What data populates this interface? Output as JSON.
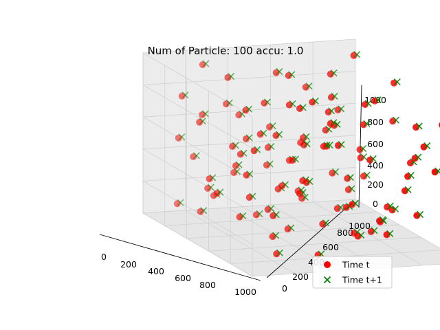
{
  "chart_data": {
    "type": "scatter",
    "title": "Num of Particle: 100 accu: 1.0",
    "xlim": [
      0,
      1000
    ],
    "ylim": [
      0,
      1000
    ],
    "zlim": [
      0,
      1000
    ],
    "x_ticks": [
      "0",
      "200",
      "400",
      "600",
      "800",
      "1000"
    ],
    "y_ticks": [
      "0",
      "200",
      "400",
      "600",
      "800",
      "1000"
    ],
    "z_ticks": [
      "0",
      "200",
      "400",
      "600",
      "800",
      "1000"
    ],
    "grid": true,
    "legend": "bottom-right",
    "series": [
      {
        "name": "Time t",
        "marker": "circle",
        "color": "#ff0000",
        "points": [
          [
            40,
            260,
            920
          ],
          [
            60,
            420,
            600
          ],
          [
            90,
            720,
            760
          ],
          [
            110,
            180,
            380
          ],
          [
            130,
            560,
            880
          ],
          [
            150,
            90,
            520
          ],
          [
            170,
            830,
            640
          ],
          [
            190,
            330,
            300
          ],
          [
            210,
            640,
            120
          ],
          [
            230,
            470,
            460
          ],
          [
            250,
            150,
            700
          ],
          [
            270,
            900,
            260
          ],
          [
            290,
            250,
            940
          ],
          [
            310,
            700,
            580
          ],
          [
            330,
            560,
            220
          ],
          [
            350,
            90,
            140
          ],
          [
            370,
            380,
            800
          ],
          [
            390,
            820,
            480
          ],
          [
            410,
            210,
            560
          ],
          [
            430,
            960,
            900
          ],
          [
            450,
            450,
            40
          ],
          [
            470,
            720,
            340
          ],
          [
            490,
            300,
            660
          ],
          [
            510,
            610,
            780
          ],
          [
            530,
            40,
            420
          ],
          [
            550,
            890,
            160
          ],
          [
            570,
            410,
            520
          ],
          [
            590,
            180,
            860
          ],
          [
            610,
            760,
            60
          ],
          [
            630,
            540,
            620
          ],
          [
            650,
            320,
            400
          ],
          [
            670,
            940,
            720
          ],
          [
            690,
            100,
            240
          ],
          [
            710,
            680,
            900
          ],
          [
            730,
            470,
            180
          ],
          [
            750,
            240,
            760
          ],
          [
            770,
            850,
            460
          ],
          [
            790,
            550,
            300
          ],
          [
            810,
            380,
            980
          ],
          [
            830,
            60,
            560
          ],
          [
            850,
            710,
            140
          ],
          [
            870,
            290,
            440
          ],
          [
            890,
            950,
            820
          ],
          [
            910,
            600,
            640
          ],
          [
            930,
            150,
            100
          ],
          [
            950,
            430,
            760
          ],
          [
            970,
            790,
            300
          ],
          [
            990,
            260,
            560
          ],
          [
            60,
            860,
            200
          ],
          [
            80,
            120,
            80
          ],
          [
            100,
            690,
            420
          ],
          [
            120,
            330,
            700
          ],
          [
            140,
            920,
            960
          ],
          [
            160,
            500,
            320
          ],
          [
            180,
            240,
            160
          ],
          [
            200,
            780,
            880
          ],
          [
            220,
            420,
            40
          ],
          [
            240,
            60,
            820
          ],
          [
            260,
            620,
            520
          ],
          [
            280,
            880,
            380
          ],
          [
            300,
            150,
            260
          ],
          [
            320,
            520,
            940
          ],
          [
            340,
            740,
            100
          ],
          [
            360,
            300,
            580
          ],
          [
            380,
            980,
            640
          ],
          [
            400,
            60,
            720
          ],
          [
            420,
            420,
            280
          ],
          [
            440,
            660,
            840
          ],
          [
            460,
            200,
            460
          ],
          [
            480,
            870,
            60
          ],
          [
            500,
            500,
            580
          ],
          [
            520,
            320,
            200
          ],
          [
            540,
            760,
            700
          ],
          [
            560,
            60,
            340
          ],
          [
            580,
            960,
            460
          ],
          [
            600,
            380,
            880
          ],
          [
            620,
            140,
            600
          ],
          [
            640,
            820,
            220
          ],
          [
            660,
            560,
            760
          ],
          [
            680,
            260,
            100
          ],
          [
            700,
            920,
            540
          ],
          [
            720,
            480,
            660
          ],
          [
            740,
            120,
            380
          ],
          [
            760,
            700,
            940
          ],
          [
            780,
            350,
            480
          ],
          [
            800,
            600,
            120
          ],
          [
            820,
            900,
            660
          ],
          [
            840,
            180,
            300
          ],
          [
            860,
            440,
            860
          ],
          [
            880,
            780,
            420
          ],
          [
            900,
            60,
            740
          ],
          [
            920,
            640,
            260
          ],
          [
            940,
            340,
            80
          ],
          [
            960,
            880,
            560
          ],
          [
            980,
            480,
            400
          ],
          [
            30,
            580,
            500
          ],
          [
            130,
            900,
            120
          ],
          [
            250,
            560,
            380
          ],
          [
            570,
            700,
            40
          ],
          [
            890,
            280,
            980
          ]
        ]
      },
      {
        "name": "Time t+1",
        "marker": "x",
        "color": "#008000",
        "points": [
          [
            50,
            270,
            930
          ],
          [
            70,
            430,
            610
          ],
          [
            100,
            730,
            770
          ],
          [
            120,
            190,
            390
          ],
          [
            140,
            570,
            890
          ],
          [
            160,
            100,
            530
          ],
          [
            180,
            840,
            650
          ],
          [
            200,
            340,
            310
          ],
          [
            220,
            650,
            130
          ],
          [
            240,
            480,
            470
          ],
          [
            260,
            160,
            710
          ],
          [
            280,
            910,
            270
          ],
          [
            300,
            260,
            950
          ],
          [
            320,
            710,
            590
          ],
          [
            340,
            570,
            230
          ],
          [
            360,
            100,
            150
          ],
          [
            380,
            390,
            810
          ],
          [
            400,
            830,
            490
          ],
          [
            420,
            220,
            570
          ],
          [
            440,
            970,
            910
          ],
          [
            460,
            460,
            50
          ],
          [
            480,
            730,
            350
          ],
          [
            500,
            310,
            670
          ],
          [
            520,
            620,
            790
          ],
          [
            540,
            50,
            430
          ],
          [
            560,
            900,
            170
          ],
          [
            580,
            420,
            530
          ],
          [
            600,
            190,
            870
          ],
          [
            620,
            770,
            70
          ],
          [
            640,
            550,
            630
          ],
          [
            660,
            330,
            410
          ],
          [
            680,
            950,
            730
          ],
          [
            700,
            110,
            250
          ],
          [
            720,
            690,
            910
          ],
          [
            740,
            480,
            190
          ],
          [
            760,
            250,
            770
          ],
          [
            780,
            860,
            470
          ],
          [
            800,
            560,
            310
          ],
          [
            820,
            390,
            990
          ],
          [
            840,
            70,
            570
          ],
          [
            860,
            720,
            150
          ],
          [
            880,
            300,
            450
          ],
          [
            900,
            960,
            830
          ],
          [
            920,
            610,
            650
          ],
          [
            940,
            160,
            110
          ],
          [
            960,
            440,
            770
          ],
          [
            980,
            800,
            310
          ],
          [
            1000,
            270,
            570
          ],
          [
            70,
            870,
            210
          ],
          [
            90,
            130,
            90
          ],
          [
            110,
            700,
            430
          ],
          [
            130,
            340,
            710
          ],
          [
            150,
            930,
            970
          ],
          [
            170,
            510,
            330
          ],
          [
            190,
            250,
            170
          ],
          [
            210,
            790,
            890
          ],
          [
            230,
            430,
            50
          ],
          [
            250,
            70,
            830
          ],
          [
            270,
            630,
            530
          ],
          [
            290,
            890,
            390
          ],
          [
            310,
            160,
            270
          ],
          [
            330,
            530,
            950
          ],
          [
            350,
            750,
            110
          ],
          [
            370,
            310,
            590
          ],
          [
            390,
            990,
            650
          ],
          [
            410,
            70,
            730
          ],
          [
            430,
            430,
            290
          ],
          [
            450,
            670,
            850
          ],
          [
            470,
            210,
            470
          ],
          [
            490,
            880,
            70
          ],
          [
            510,
            510,
            590
          ],
          [
            530,
            330,
            210
          ],
          [
            550,
            770,
            710
          ],
          [
            570,
            70,
            350
          ],
          [
            590,
            970,
            470
          ],
          [
            610,
            390,
            890
          ],
          [
            630,
            150,
            610
          ],
          [
            650,
            830,
            230
          ],
          [
            670,
            570,
            770
          ],
          [
            690,
            270,
            110
          ],
          [
            710,
            930,
            550
          ],
          [
            730,
            490,
            670
          ],
          [
            750,
            130,
            390
          ],
          [
            770,
            710,
            950
          ],
          [
            790,
            360,
            490
          ],
          [
            810,
            610,
            130
          ],
          [
            830,
            910,
            670
          ],
          [
            850,
            190,
            310
          ],
          [
            870,
            450,
            870
          ],
          [
            890,
            790,
            430
          ],
          [
            910,
            70,
            750
          ],
          [
            930,
            650,
            270
          ],
          [
            950,
            350,
            90
          ],
          [
            970,
            890,
            570
          ],
          [
            990,
            490,
            410
          ],
          [
            40,
            590,
            510
          ],
          [
            140,
            910,
            130
          ],
          [
            260,
            570,
            390
          ],
          [
            580,
            710,
            50
          ],
          [
            900,
            290,
            990
          ]
        ]
      }
    ]
  },
  "colors": {
    "time_t": "#ff0000",
    "time_t1": "#008000",
    "pane_left": "#f2f2f2",
    "pane_right": "#ececec",
    "pane_floor": "#e6e6e6",
    "grid": "#d0d0d0"
  }
}
